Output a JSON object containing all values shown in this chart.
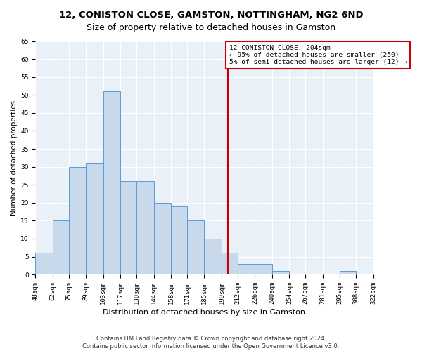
{
  "title": "12, CONISTON CLOSE, GAMSTON, NOTTINGHAM, NG2 6ND",
  "subtitle": "Size of property relative to detached houses in Gamston",
  "xlabel": "Distribution of detached houses by size in Gamston",
  "ylabel": "Number of detached properties",
  "bar_color": "#c8d9ec",
  "bar_edge_color": "#5b9bd5",
  "background_color": "#eaf0f8",
  "grid_color": "white",
  "bins": [
    48,
    62,
    75,
    89,
    103,
    117,
    130,
    144,
    158,
    171,
    185,
    199,
    212,
    226,
    240,
    254,
    267,
    281,
    295,
    308,
    322
  ],
  "bin_labels": [
    "48sqm",
    "62sqm",
    "75sqm",
    "89sqm",
    "103sqm",
    "117sqm",
    "130sqm",
    "144sqm",
    "158sqm",
    "171sqm",
    "185sqm",
    "199sqm",
    "212sqm",
    "226sqm",
    "240sqm",
    "254sqm",
    "267sqm",
    "281sqm",
    "295sqm",
    "308sqm",
    "322sqm"
  ],
  "counts": [
    6,
    15,
    30,
    31,
    51,
    26,
    26,
    20,
    19,
    15,
    10,
    6,
    3,
    3,
    1,
    0,
    0,
    0,
    1,
    0
  ],
  "vline_x": 204,
  "vline_color": "#cc0000",
  "annotation_text": "12 CONISTON CLOSE: 204sqm\n← 95% of detached houses are smaller (250)\n5% of semi-detached houses are larger (12) →",
  "annotation_box_color": "white",
  "annotation_box_edge_color": "#cc0000",
  "ylim": [
    0,
    65
  ],
  "yticks": [
    0,
    5,
    10,
    15,
    20,
    25,
    30,
    35,
    40,
    45,
    50,
    55,
    60,
    65
  ],
  "footer": "Contains HM Land Registry data © Crown copyright and database right 2024.\nContains public sector information licensed under the Open Government Licence v3.0.",
  "title_fontsize": 9.5,
  "ylabel_fontsize": 7.5,
  "xlabel_fontsize": 8,
  "tick_fontsize": 6.5,
  "annotation_fontsize": 6.8,
  "footer_fontsize": 6
}
